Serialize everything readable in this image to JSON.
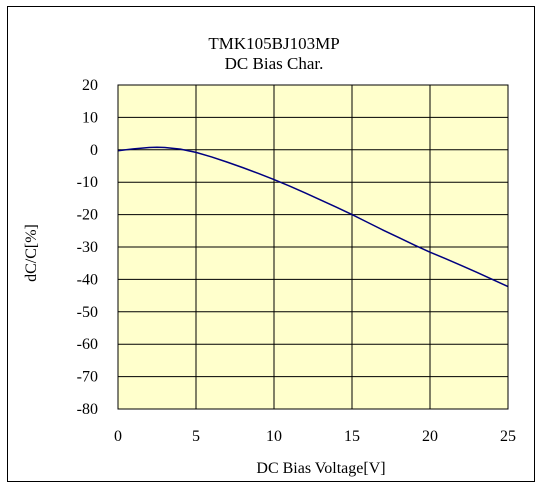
{
  "chart_data": {
    "type": "line",
    "title": "TMK105BJ103MP",
    "subtitle": "DC Bias Char.",
    "xlabel": "DC Bias Voltage[V]",
    "ylabel": "dC/C[%]",
    "xlim": [
      0,
      25
    ],
    "ylim": [
      -80,
      20
    ],
    "xticks": [
      0,
      5,
      10,
      15,
      20,
      25
    ],
    "yticks": [
      20,
      10,
      0,
      -10,
      -20,
      -30,
      -40,
      -50,
      -60,
      -70,
      -80
    ],
    "grid": true,
    "legend": "none",
    "series": [
      {
        "x": [
          0,
          1,
          2,
          2.5,
          3,
          4,
          5,
          6,
          7,
          8,
          9,
          10,
          11,
          12,
          13,
          14,
          15,
          16,
          17,
          18,
          19,
          20,
          21,
          22,
          23,
          24,
          25
        ],
        "y": [
          -0.3,
          0.3,
          0.7,
          0.8,
          0.7,
          0.2,
          -0.8,
          -2.2,
          -3.8,
          -5.5,
          -7.3,
          -9.2,
          -11.2,
          -13.3,
          -15.5,
          -17.7,
          -20.0,
          -22.4,
          -24.8,
          -27.1,
          -29.4,
          -31.6,
          -33.6,
          -35.7,
          -37.8,
          -40.0,
          -42.2
        ]
      }
    ],
    "colors": {
      "plot_background": "#ffffcc",
      "line": "#000080",
      "grid": "#000000"
    }
  }
}
